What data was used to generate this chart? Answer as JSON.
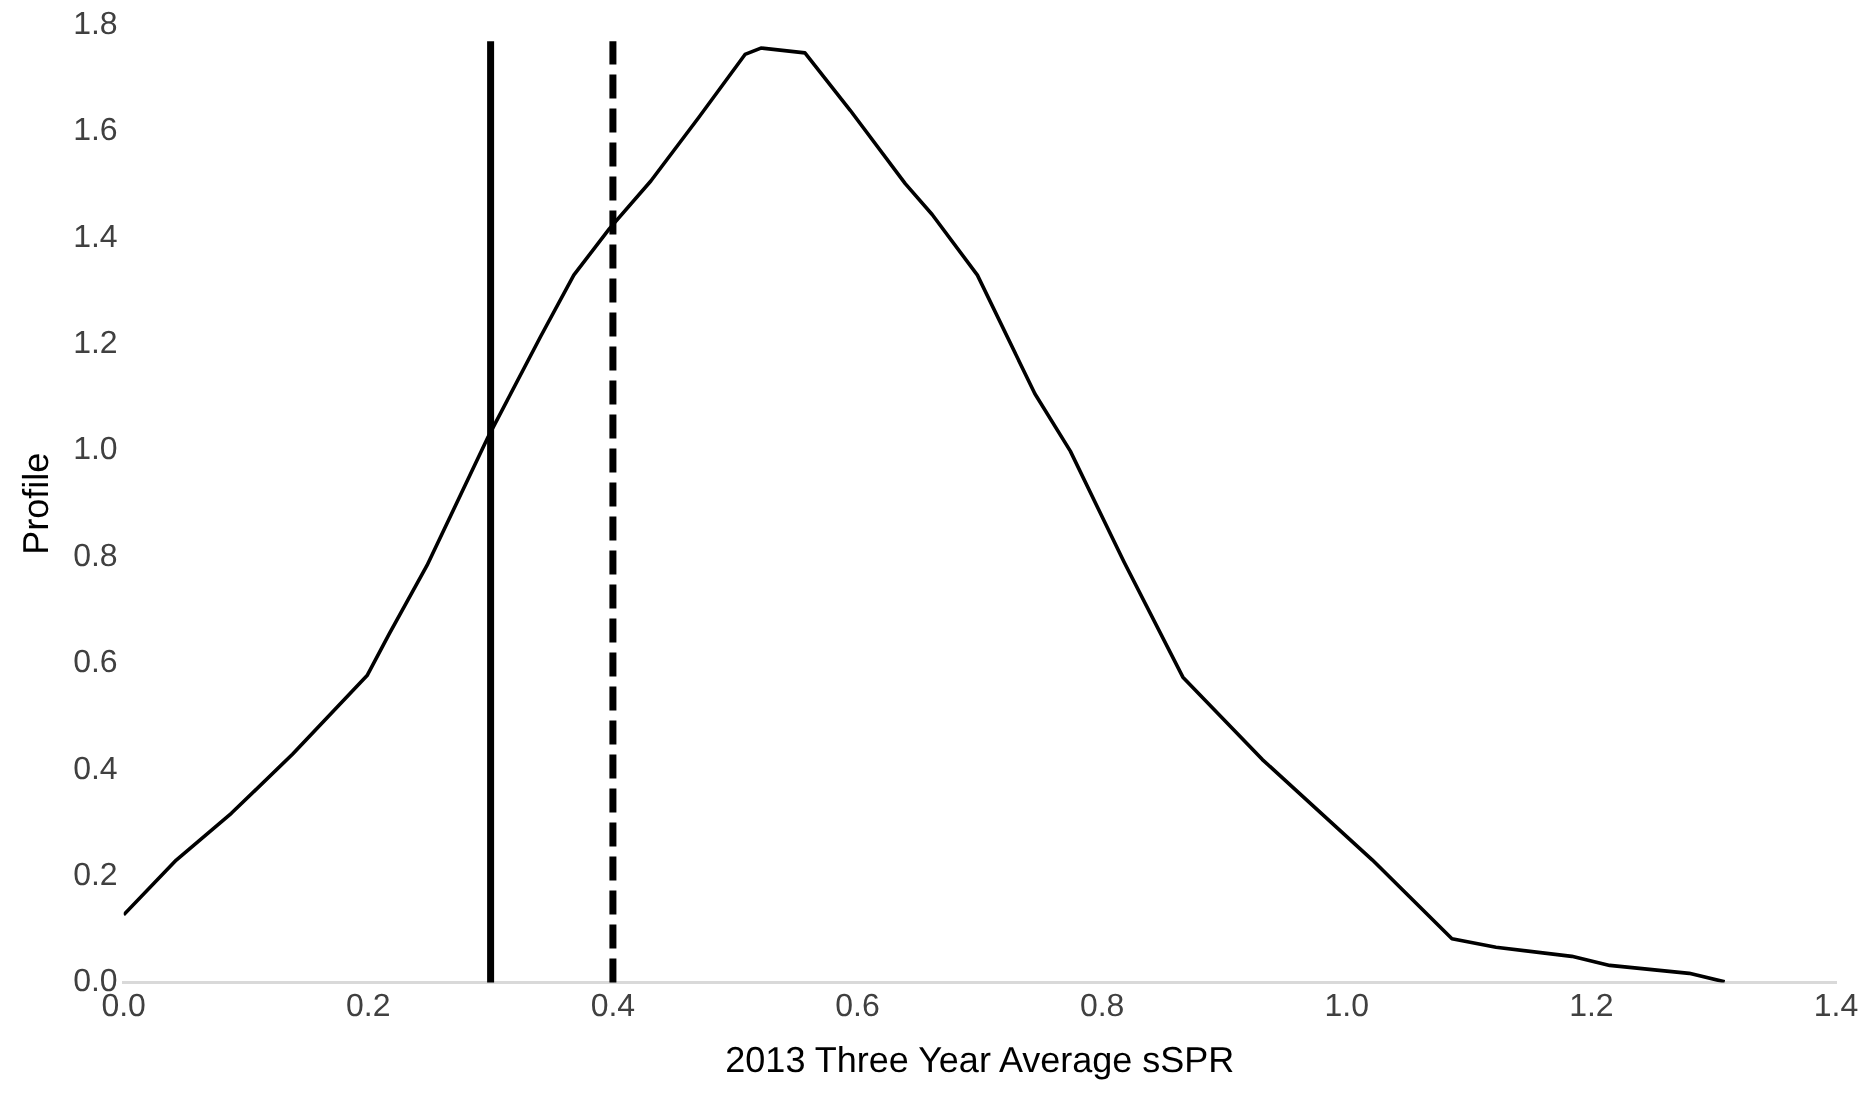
{
  "chart_data": {
    "type": "line",
    "xlabel": "2013 Three Year Average sSPR",
    "ylabel": "Profile",
    "grid": false,
    "legend": false,
    "marker": "none",
    "xlim": [
      0,
      1.4
    ],
    "xticks": [
      {
        "value": 0,
        "label": "0.0"
      },
      {
        "value": 0.2,
        "label": "0.2"
      },
      {
        "value": 0.4,
        "label": "0.4"
      },
      {
        "value": 0.6,
        "label": "0.6"
      },
      {
        "value": 0.8,
        "label": "0.8"
      },
      {
        "value": 1,
        "label": "1.0"
      },
      {
        "value": 1.2,
        "label": "1.2"
      },
      {
        "value": 1.4,
        "label": "1.4"
      }
    ],
    "ylim": [
      0,
      1.8
    ],
    "yticks": [
      {
        "value": 0,
        "label": "0.0"
      },
      {
        "value": 0.2,
        "label": "0.2"
      },
      {
        "value": 0.4,
        "label": "0.4"
      },
      {
        "value": 0.6,
        "label": "0.6"
      },
      {
        "value": 0.8,
        "label": "0.8"
      },
      {
        "value": 1,
        "label": "1.0"
      },
      {
        "value": 1.2,
        "label": "1.2"
      },
      {
        "value": 1.4,
        "label": "1.4"
      },
      {
        "value": 1.6,
        "label": "1.6"
      },
      {
        "value": 1.8,
        "label": "1.8"
      }
    ],
    "series": [
      {
        "color": "#000000",
        "line_style": "solid",
        "x": [
          0,
          0.043,
          0.088,
          0.138,
          0.199,
          0.217,
          0.248,
          0.298,
          0.341,
          0.368,
          0.397,
          0.431,
          0.47,
          0.508,
          0.521,
          0.557,
          0.594,
          0.639,
          0.661,
          0.698,
          0.745,
          0.774,
          0.818,
          0.866,
          0.931,
          1.021,
          1.086,
          1.122,
          1.184,
          1.215,
          1.28,
          1.309
        ],
        "values": [
          0.127,
          0.23,
          0.318,
          0.429,
          0.577,
          0.655,
          0.784,
          1.026,
          1.215,
          1.33,
          1.417,
          1.507,
          1.626,
          1.745,
          1.757,
          1.748,
          1.64,
          1.502,
          1.444,
          1.33,
          1.107,
          0.999,
          0.79,
          0.574,
          0.419,
          0.23,
          0.082,
          0.066,
          0.049,
          0.032,
          0.017,
          0.001
        ]
      }
    ],
    "ref_lines": [
      {
        "axis": "x",
        "value": 0.3,
        "color": "#000000",
        "line_style": "solid"
      },
      {
        "axis": "x",
        "value": 0.4,
        "color": "#000000",
        "line_style": "dashed"
      }
    ]
  }
}
